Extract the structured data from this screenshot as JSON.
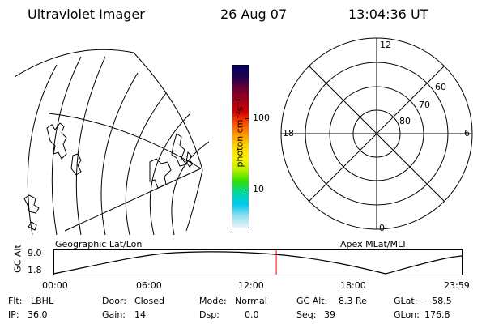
{
  "header": {
    "title": "Ultraviolet Imager",
    "date": "26 Aug 07",
    "time": "13:04:36 UT"
  },
  "geo_map": {
    "label": "Geographic Lat/Lon"
  },
  "colorbar": {
    "unit_label": "photon cm⁻²s⁻¹",
    "ticks": [
      {
        "label": "100",
        "level": 0.67
      },
      {
        "label": "10",
        "level": 0.23
      }
    ],
    "colors": [
      "#000066",
      "#22004d",
      "#6a0033",
      "#a00018",
      "#d00000",
      "#ff5000",
      "#ff9800",
      "#ffd800",
      "#fff000",
      "#b8f000",
      "#30e000",
      "#00d8a0",
      "#00c8f0",
      "#90e0f0",
      "#e8f4f8"
    ]
  },
  "polar": {
    "label": "Apex  MLat/MLT",
    "mlt_labels": {
      "top": "12",
      "left": "18",
      "right": "6",
      "bottom": "0"
    },
    "lat_labels": [
      "60",
      "70",
      "80"
    ]
  },
  "altitude_plot": {
    "ylabel": "GC Alt",
    "ymax": "9.0",
    "ymin": "1.8",
    "x_ticks": [
      "00:00",
      "06:00",
      "12:00",
      "18:00",
      "23:59"
    ],
    "marker_time": "13:04"
  },
  "info": {
    "filter_label": "Flt:",
    "filter": "LBHL",
    "ip_label": "IP:",
    "ip": "36.0",
    "door_label": "Door:",
    "door": "Closed",
    "gain_label": "Gain:",
    "gain": "14",
    "mode_label": "Mode:",
    "mode": "Normal",
    "dsp_label": "Dsp:",
    "dsp": "0.0",
    "gcalt_label": "GC Alt:",
    "gcalt": "8.3 Re",
    "seq_label": "Seq:",
    "seq": "39",
    "glat_label": "GLat:",
    "glat": "−58.5",
    "glon_label": "GLon:",
    "glon": "176.8"
  }
}
